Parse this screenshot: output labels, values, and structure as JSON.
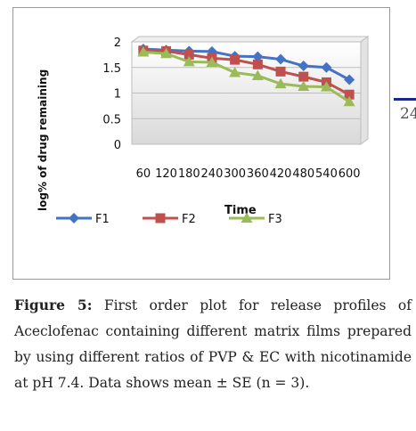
{
  "chart_data": {
    "type": "line",
    "title": "",
    "xlabel": "Time",
    "ylabel": "log% of drug remaining",
    "categories": [
      "60",
      "120",
      "180",
      "240",
      "300",
      "360",
      "420",
      "480",
      "540",
      "600"
    ],
    "ylim": [
      0,
      2
    ],
    "yticks": [
      "0",
      "0.5",
      "1",
      "1.5",
      "2"
    ],
    "grid": true,
    "legend_position": "bottom",
    "series": [
      {
        "name": "F1",
        "color": "#4472c4",
        "marker": "diamond",
        "values": [
          1.86,
          1.84,
          1.82,
          1.81,
          1.72,
          1.71,
          1.66,
          1.53,
          1.5,
          1.26
        ]
      },
      {
        "name": "F2",
        "color": "#c0504d",
        "marker": "square",
        "values": [
          1.83,
          1.82,
          1.75,
          1.68,
          1.65,
          1.56,
          1.42,
          1.32,
          1.21,
          0.97
        ]
      },
      {
        "name": "F3",
        "color": "#9bbb59",
        "marker": "triangle",
        "values": [
          1.8,
          1.77,
          1.61,
          1.6,
          1.4,
          1.34,
          1.18,
          1.13,
          1.12,
          0.83
        ]
      }
    ]
  },
  "side": {
    "page_number_fragment": "24"
  },
  "caption": {
    "label": "Figure 5:",
    "text": " First order plot for release profiles of Aceclofenac containing different matrix films prepared by using different ratios of PVP & EC with nicotinamide at pH 7.4. Data shows mean ± SE (n = 3)."
  }
}
